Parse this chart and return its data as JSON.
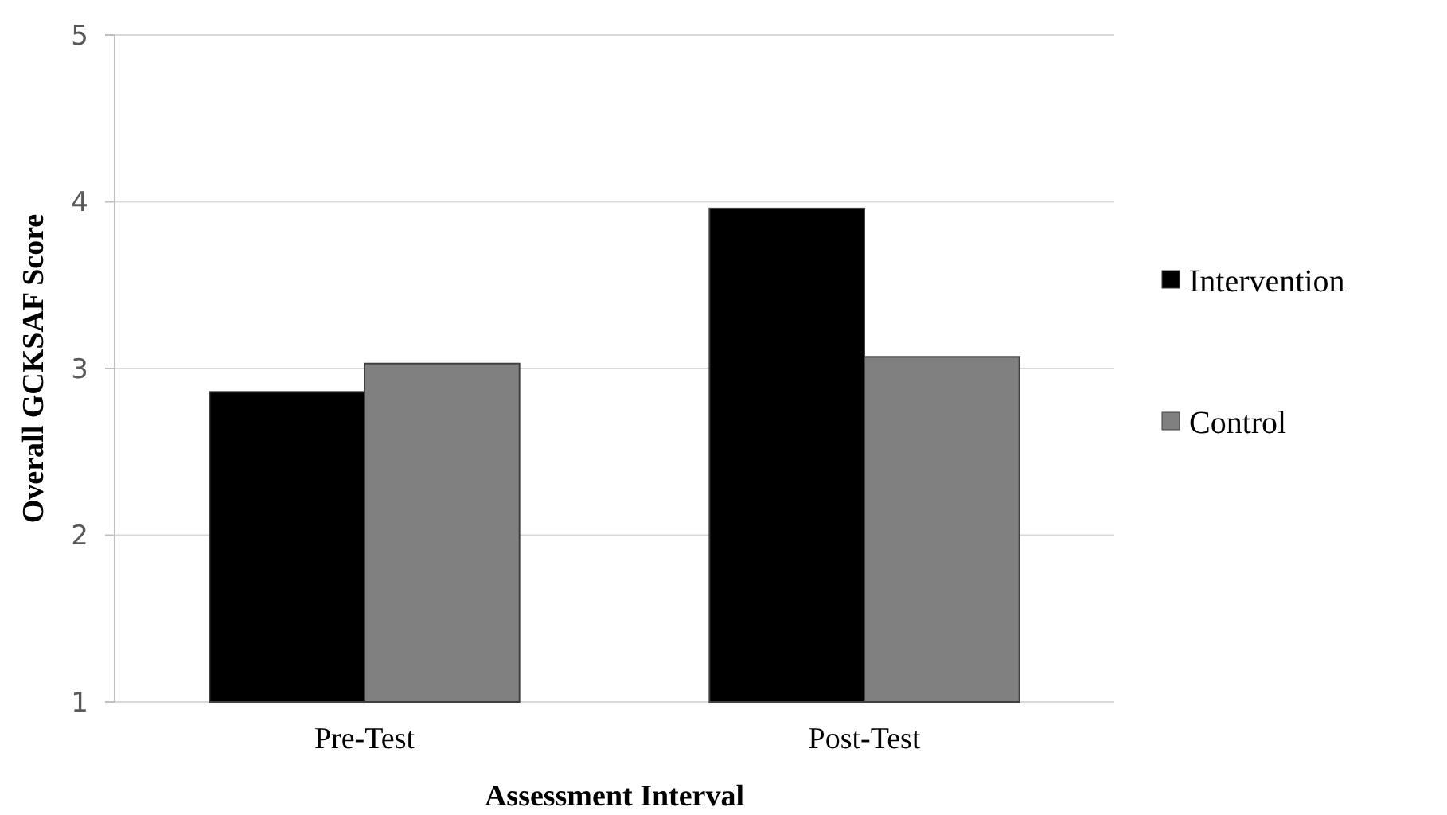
{
  "chart_data": {
    "type": "bar",
    "xlabel": "Assessment Interval",
    "ylabel": "Overall GCKSAF Score",
    "categories": [
      "Pre-Test",
      "Post-Test"
    ],
    "series": [
      {
        "name": "Intervention",
        "color": "#000000",
        "values": [
          2.86,
          3.96
        ]
      },
      {
        "name": "Control",
        "color": "#808080",
        "values": [
          3.03,
          3.07
        ]
      }
    ],
    "ylim": [
      1,
      5
    ],
    "yticks": [
      1,
      2,
      3,
      4,
      5
    ],
    "grid": "y",
    "legend": "right"
  }
}
